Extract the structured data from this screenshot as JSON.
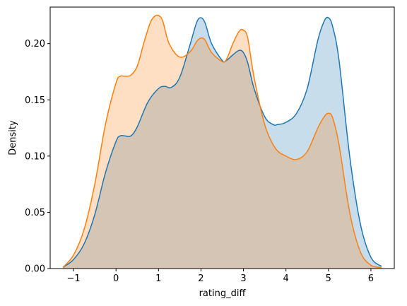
{
  "chart_data": {
    "type": "area",
    "title": "",
    "xlabel": "rating_diff",
    "ylabel": "Density",
    "xlim": [
      -1.55,
      6.55
    ],
    "ylim": [
      0.0,
      0.2325
    ],
    "xticks": [
      -1,
      0,
      1,
      2,
      3,
      4,
      5,
      6
    ],
    "yticks": [
      0.0,
      0.05,
      0.1,
      0.15,
      0.2
    ],
    "ytick_labels": [
      "0.00",
      "0.05",
      "0.10",
      "0.15",
      "0.20"
    ],
    "grid": false,
    "legend": null,
    "series": [
      {
        "color": "#1f77b4",
        "fill_opacity": 0.25,
        "x": [
          -1.25,
          -1.0,
          -0.75,
          -0.5,
          -0.25,
          0.0,
          0.1,
          0.2,
          0.35,
          0.5,
          0.75,
          1.0,
          1.15,
          1.3,
          1.5,
          1.75,
          1.9,
          2.0,
          2.1,
          2.25,
          2.5,
          2.6,
          2.75,
          2.9,
          3.0,
          3.1,
          3.25,
          3.5,
          3.7,
          3.8,
          4.0,
          4.25,
          4.5,
          4.75,
          4.9,
          5.0,
          5.1,
          5.25,
          5.5,
          5.75,
          6.0,
          6.25
        ],
        "y": [
          0.001,
          0.008,
          0.022,
          0.048,
          0.085,
          0.113,
          0.118,
          0.118,
          0.118,
          0.126,
          0.148,
          0.16,
          0.162,
          0.161,
          0.17,
          0.2,
          0.219,
          0.223,
          0.218,
          0.2,
          0.185,
          0.185,
          0.19,
          0.194,
          0.192,
          0.183,
          0.16,
          0.135,
          0.128,
          0.128,
          0.13,
          0.138,
          0.16,
          0.203,
          0.22,
          0.223,
          0.215,
          0.185,
          0.1,
          0.04,
          0.01,
          0.002
        ]
      },
      {
        "color": "#ff7f0e",
        "fill_opacity": 0.25,
        "x": [
          -1.25,
          -1.0,
          -0.75,
          -0.5,
          -0.25,
          0.0,
          0.1,
          0.2,
          0.35,
          0.5,
          0.65,
          0.8,
          0.9,
          1.0,
          1.1,
          1.25,
          1.5,
          1.75,
          1.9,
          2.0,
          2.1,
          2.25,
          2.5,
          2.6,
          2.75,
          2.9,
          3.0,
          3.1,
          3.25,
          3.5,
          3.75,
          4.0,
          4.25,
          4.5,
          4.75,
          4.9,
          5.0,
          5.1,
          5.25,
          5.5,
          5.75,
          6.0,
          6.25
        ],
        "y": [
          0.001,
          0.012,
          0.035,
          0.075,
          0.128,
          0.165,
          0.171,
          0.171,
          0.172,
          0.18,
          0.2,
          0.218,
          0.224,
          0.225,
          0.22,
          0.2,
          0.188,
          0.193,
          0.202,
          0.205,
          0.203,
          0.192,
          0.184,
          0.186,
          0.2,
          0.211,
          0.212,
          0.205,
          0.17,
          0.128,
          0.107,
          0.1,
          0.097,
          0.104,
          0.125,
          0.135,
          0.138,
          0.134,
          0.11,
          0.05,
          0.015,
          0.003,
          0.001
        ]
      }
    ]
  }
}
